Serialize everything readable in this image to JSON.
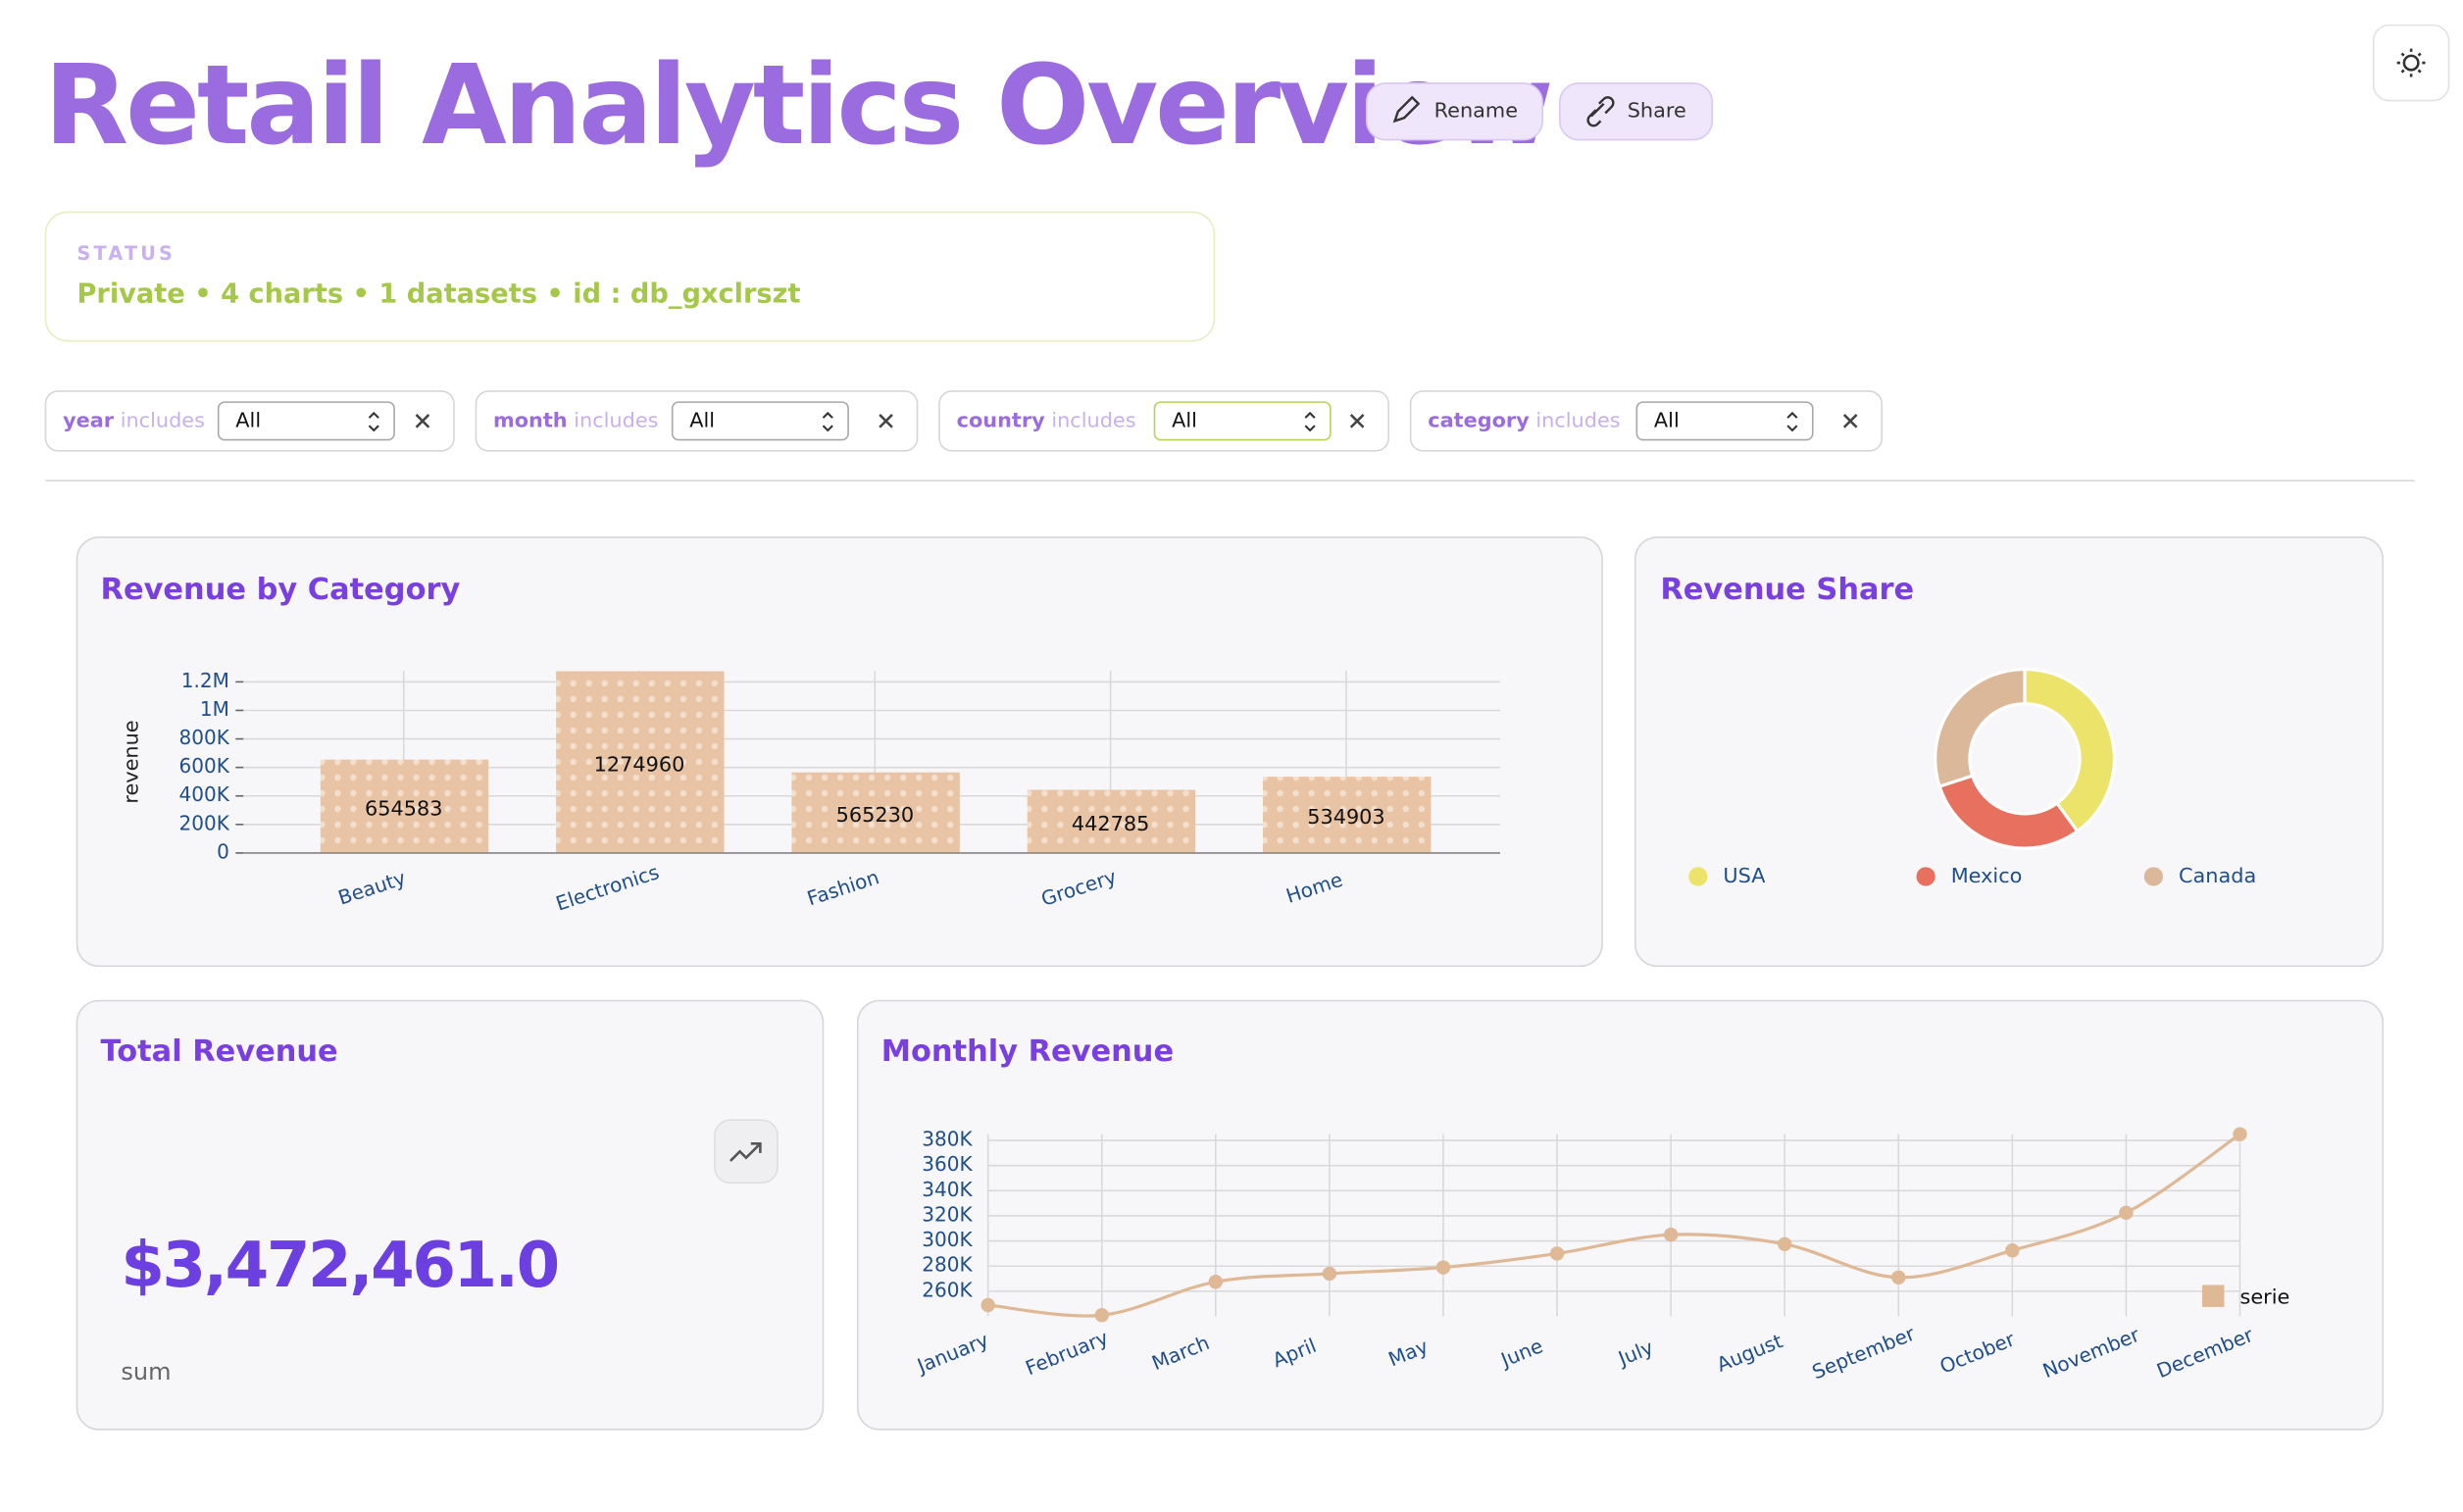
{
  "header": {
    "title": "Retail Analytics Overview",
    "buttons": [
      "Rename",
      "Share"
    ]
  },
  "status": {
    "label": "STATUS",
    "text": "Private • 4 charts • 1 datasets • id : db_gxclrszt"
  },
  "filters": [
    {
      "field": "year",
      "operator": "includes",
      "value": "All"
    },
    {
      "field": "month",
      "operator": "includes",
      "value": "All"
    },
    {
      "field": "country",
      "operator": "includes",
      "value": "All"
    },
    {
      "field": "category",
      "operator": "includes",
      "value": "All"
    }
  ],
  "charts": [
    {
      "type": "bar",
      "title": "Revenue by Category",
      "y_label": "revenue",
      "categories": [
        "Beauty",
        "Electronics",
        "Fashion",
        "Grocery",
        "Home"
      ],
      "values": [
        654583,
        1274960,
        565230,
        442785,
        534903
      ],
      "color": "#e8c4a4",
      "ylim": [
        0,
        1300000
      ],
      "yticks": [
        0,
        {
          "value": 200000,
          "label": "200K"
        },
        {
          "value": 400000,
          "label": "400K"
        },
        {
          "value": 600000,
          "label": "600K"
        },
        {
          "value": 800000,
          "label": "800K"
        },
        {
          "value": 1000000,
          "label": "1M"
        },
        {
          "value": 1200000,
          "label": "1.2M"
        }
      ],
      "grid": true
    },
    {
      "type": "pie",
      "title": "Revenue Share",
      "donut": true,
      "categories": [
        "USA",
        "Mexico",
        "Canada"
      ],
      "values": [
        40,
        30,
        30
      ],
      "colors": [
        "#ece36a",
        "#e8705f",
        "#dcb89a"
      ]
    },
    {
      "type": "kpi",
      "title": "Total Revenue",
      "value": "$3,472,461.0",
      "caption": "sum"
    },
    {
      "type": "line",
      "title": "Monthly Revenue",
      "categories": [
        "January",
        "February",
        "March",
        "April",
        "May",
        "June",
        "July",
        "August",
        "September",
        "October",
        "November",
        "December"
      ],
      "series": [
        {
          "name": "serie",
          "color": "#dfb896",
          "values": [
            249000,
            241000,
            267500,
            274000,
            279000,
            290000,
            305000,
            297500,
            271000,
            292500,
            322500,
            385000
          ]
        }
      ],
      "ylim": [
        240000,
        385000
      ],
      "yticks": [
        {
          "value": 260000,
          "label": "260K"
        },
        {
          "value": 280000,
          "label": "280K"
        },
        {
          "value": 300000,
          "label": "300K"
        },
        {
          "value": 320000,
          "label": "320K"
        },
        {
          "value": 340000,
          "label": "340K"
        },
        {
          "value": 360000,
          "label": "360K"
        },
        {
          "value": 380000,
          "label": "380K"
        }
      ],
      "grid": true
    }
  ]
}
